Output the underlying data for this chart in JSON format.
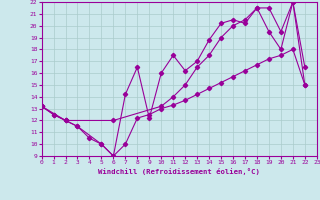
{
  "xlabel": "Windchill (Refroidissement éolien,°C)",
  "xlim": [
    0,
    23
  ],
  "ylim": [
    9,
    22
  ],
  "yticks": [
    9,
    10,
    11,
    12,
    13,
    14,
    15,
    16,
    17,
    18,
    19,
    20,
    21,
    22
  ],
  "xticks": [
    0,
    1,
    2,
    3,
    4,
    5,
    6,
    7,
    8,
    9,
    10,
    11,
    12,
    13,
    14,
    15,
    16,
    17,
    18,
    19,
    20,
    21,
    22,
    23
  ],
  "bg_color": "#cce8ec",
  "line_color": "#990099",
  "grid_color": "#aacccc",
  "line1_x": [
    0,
    1,
    2,
    3,
    4,
    5,
    6,
    7,
    8,
    9,
    10,
    11,
    12,
    13,
    14,
    15,
    16,
    17,
    18,
    19,
    20,
    21,
    22
  ],
  "line1_y": [
    13.2,
    12.5,
    12.0,
    11.5,
    10.5,
    10.0,
    9.0,
    10.0,
    12.2,
    12.5,
    13.0,
    13.3,
    13.7,
    14.2,
    14.7,
    15.2,
    15.7,
    16.2,
    16.7,
    17.2,
    17.5,
    18.0,
    15.0
  ],
  "line2_x": [
    0,
    1,
    2,
    3,
    5,
    6,
    7,
    8,
    9,
    10,
    11,
    12,
    13,
    14,
    15,
    16,
    17,
    18,
    19,
    20,
    21,
    22
  ],
  "line2_y": [
    13.2,
    12.5,
    12.0,
    11.5,
    10.0,
    9.0,
    14.2,
    16.5,
    12.2,
    16.0,
    17.5,
    16.2,
    17.0,
    18.8,
    20.2,
    20.5,
    20.2,
    21.5,
    19.5,
    18.0,
    22.0,
    16.5
  ],
  "line3_x": [
    0,
    2,
    6,
    10,
    11,
    12,
    13,
    14,
    15,
    16,
    17,
    18,
    19,
    20,
    21,
    22
  ],
  "line3_y": [
    13.2,
    12.0,
    12.0,
    13.2,
    14.0,
    15.0,
    16.5,
    17.5,
    19.0,
    20.0,
    20.5,
    21.5,
    21.5,
    19.5,
    22.0,
    15.0
  ]
}
